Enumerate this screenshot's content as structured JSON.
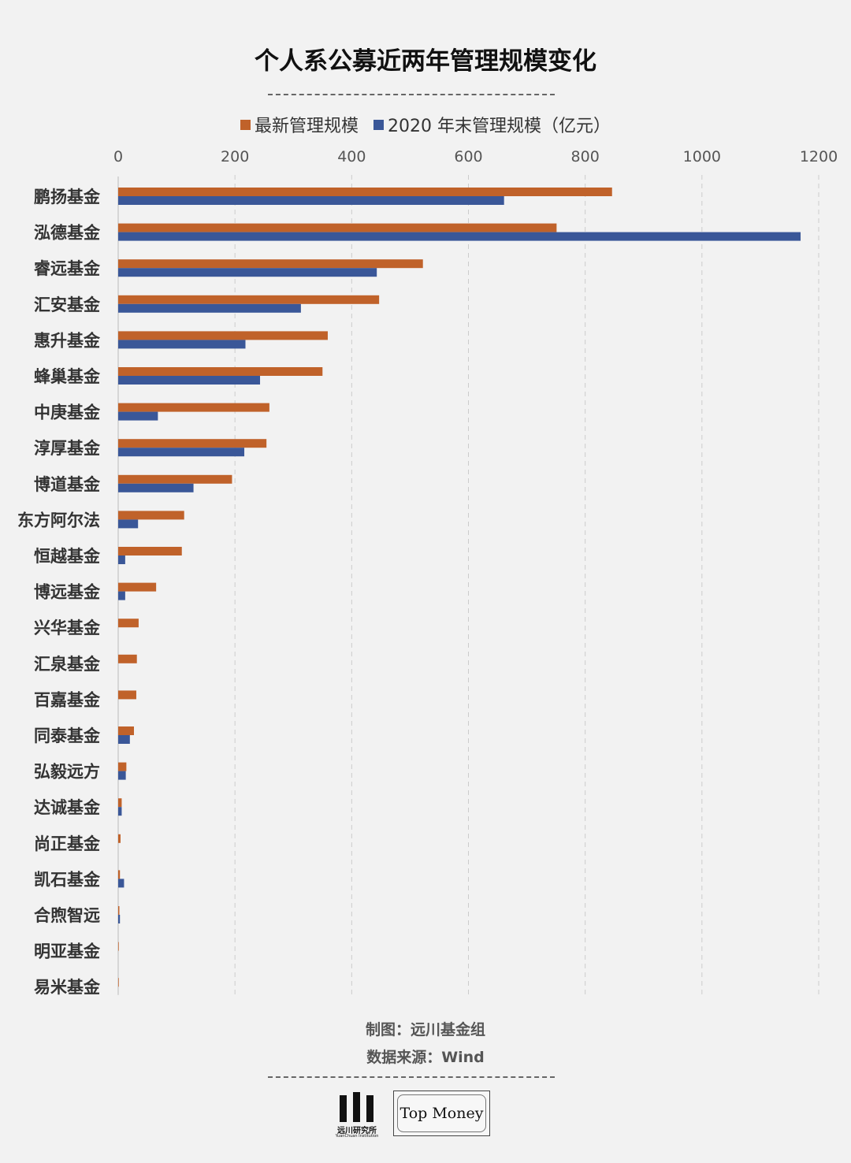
{
  "title": "个人系公募近两年管理规模变化",
  "legend": {
    "latest": "最新管理规模",
    "end2020": "2020 年末管理规模（亿元）"
  },
  "colors": {
    "latest": "#c0622a",
    "end2020": "#3a5798",
    "grid": "#cccccc"
  },
  "footer": {
    "made_by": "制图：远川基金组",
    "source": "数据来源：Wind"
  },
  "logos": {
    "yuanchuan_cn": "远川研究所",
    "yuanchuan_en": "YuanChuan Institution",
    "topmoney": "Top Money"
  },
  "chart_data": {
    "type": "bar",
    "orientation": "horizontal",
    "categories": [
      "鹏扬基金",
      "泓德基金",
      "睿远基金",
      "汇安基金",
      "惠升基金",
      "蜂巢基金",
      "中庚基金",
      "淳厚基金",
      "博道基金",
      "东方阿尔法",
      "恒越基金",
      "博远基金",
      "兴华基金",
      "汇泉基金",
      "百嘉基金",
      "同泰基金",
      "弘毅远方",
      "达诚基金",
      "尚正基金",
      "凯石基金",
      "合煦智远",
      "明亚基金",
      "易米基金"
    ],
    "series": [
      {
        "name": "最新管理规模",
        "values": [
          846,
          751,
          522,
          447,
          359,
          350,
          259,
          254,
          195,
          113,
          109,
          65,
          35,
          32,
          31,
          27,
          14,
          6,
          4,
          3,
          2,
          1,
          1
        ]
      },
      {
        "name": "2020 年末管理规模（亿元）",
        "values": [
          661,
          1169,
          443,
          313,
          218,
          243,
          68,
          216,
          129,
          34,
          12,
          12,
          0,
          0,
          0,
          20,
          13,
          6,
          0,
          10,
          3,
          0,
          0
        ]
      }
    ],
    "xlim": [
      0,
      1200
    ],
    "xticks": [
      0,
      200,
      400,
      600,
      800,
      1000,
      1200
    ],
    "grid": true,
    "legend_position": "top"
  }
}
